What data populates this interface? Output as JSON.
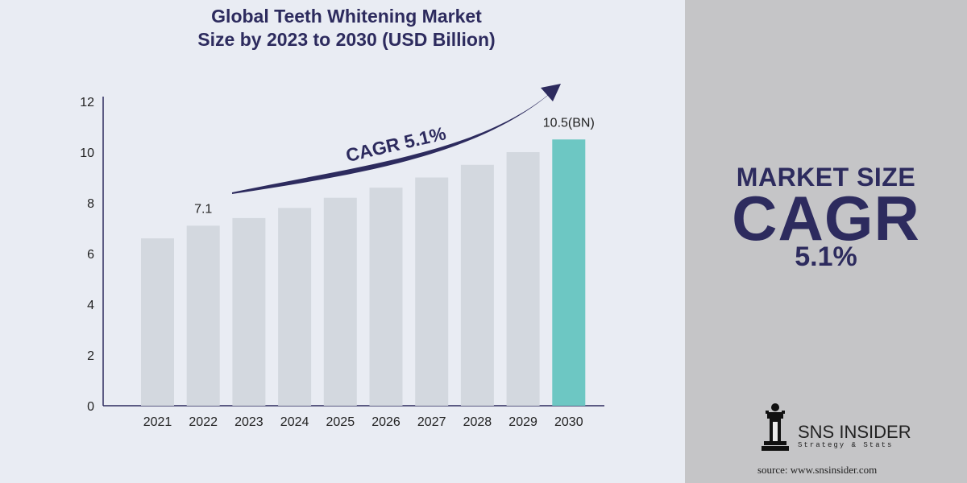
{
  "title_line1": "Global Teeth Whitening Market",
  "title_line2": "Size by 2023 to 2030 (USD Billion)",
  "chart_data": {
    "type": "bar",
    "categories": [
      "2021",
      "2022",
      "2023",
      "2024",
      "2025",
      "2026",
      "2027",
      "2028",
      "2029",
      "2030"
    ],
    "values": [
      6.6,
      7.1,
      7.4,
      7.8,
      8.2,
      8.6,
      9.0,
      9.5,
      10.0,
      10.5
    ],
    "ylim": [
      0,
      12
    ],
    "yticks": [
      0,
      2,
      4,
      6,
      8,
      10,
      12
    ],
    "data_labels": [
      {
        "category": "2022",
        "text": "7.1"
      },
      {
        "category": "2030",
        "text": "10.5(BN)"
      }
    ],
    "annotation": "CAGR 5.1%",
    "bar_color": "#d3d8df",
    "highlight_color": "#6dc7c3",
    "highlight_category": "2030",
    "grid": false
  },
  "right_panel": {
    "line1": "MARKET SIZE",
    "line2": "CAGR",
    "line3": "5.1%"
  },
  "logo": {
    "name": "SNS INSIDER",
    "tagline": "Strategy & Stats"
  },
  "source": "source: www.snsinsider.com",
  "colors": {
    "background": "#e9ecf3",
    "panel": "#c5c5c7",
    "navy": "#2d2b5e"
  }
}
